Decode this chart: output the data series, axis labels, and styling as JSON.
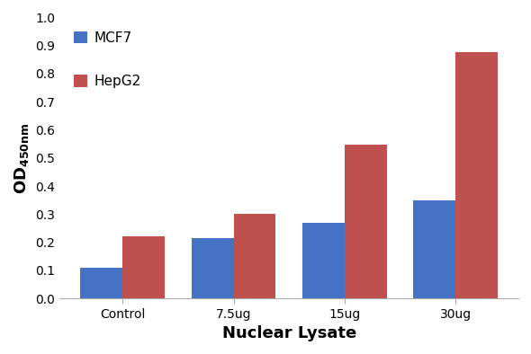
{
  "categories": [
    "Control",
    "7.5ug",
    "15ug",
    "30ug"
  ],
  "mcf7_values": [
    0.11,
    0.215,
    0.27,
    0.35
  ],
  "hepg2_values": [
    0.22,
    0.3,
    0.548,
    0.875
  ],
  "mcf7_color": "#4472C4",
  "hepg2_color": "#C0504D",
  "xlabel": "Nuclear Lysate",
  "ylim": [
    0,
    1.0
  ],
  "yticks": [
    0,
    0.1,
    0.2,
    0.3,
    0.4,
    0.5,
    0.6,
    0.7,
    0.8,
    0.9,
    1.0
  ],
  "legend_labels": [
    "MCF7",
    "HepG2"
  ],
  "bar_width": 0.38,
  "background_color": "#ffffff",
  "axis_label_fontsize": 13,
  "tick_fontsize": 10,
  "legend_fontsize": 11
}
